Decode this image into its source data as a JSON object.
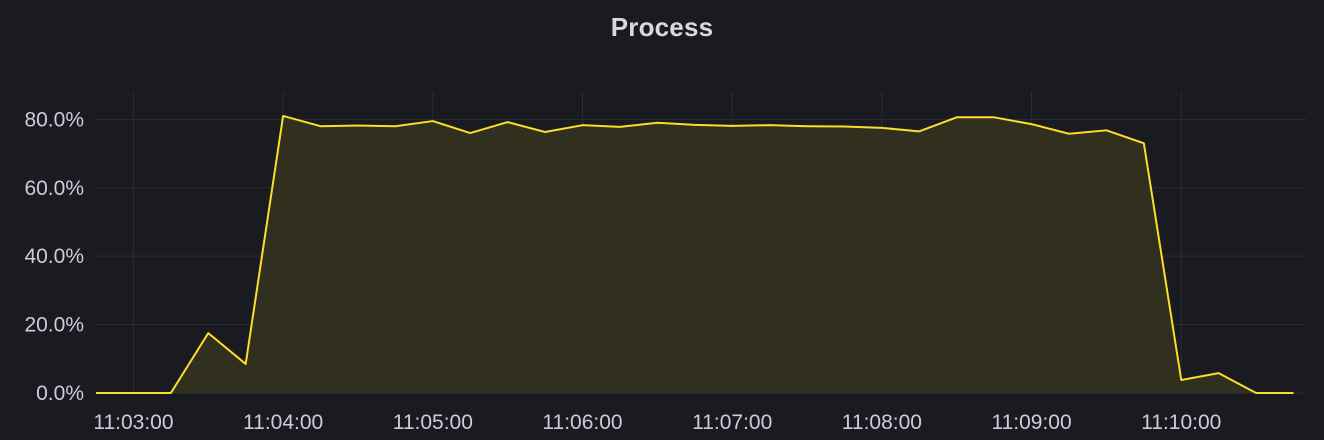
{
  "panel": {
    "title": "Process"
  },
  "chart_data": {
    "type": "area",
    "title": "Process",
    "xlabel": "",
    "ylabel": "",
    "x_ticks": [
      "11:03:00",
      "11:04:00",
      "11:05:00",
      "11:06:00",
      "11:07:00",
      "11:08:00",
      "11:09:00",
      "11:10:00"
    ],
    "y_ticks": [
      "0.0%",
      "20.0%",
      "40.0%",
      "60.0%",
      "80.0%"
    ],
    "y_tick_values": [
      0,
      20,
      40,
      60,
      80
    ],
    "ylim": [
      0,
      88
    ],
    "xlim": [
      "11:02:45",
      "11:10:50"
    ],
    "grid": true,
    "legend": "none",
    "line_color": "#fade2a",
    "fill_color": "#36331f",
    "series": [
      {
        "x": [
          "11:02:45",
          "11:03:00",
          "11:03:15",
          "11:03:30",
          "11:03:45",
          "11:04:00",
          "11:04:15",
          "11:04:30",
          "11:04:45",
          "11:05:00",
          "11:05:15",
          "11:05:30",
          "11:05:45",
          "11:06:00",
          "11:06:15",
          "11:06:30",
          "11:06:45",
          "11:07:00",
          "11:07:15",
          "11:07:30",
          "11:07:45",
          "11:08:00",
          "11:08:15",
          "11:08:30",
          "11:08:45",
          "11:09:00",
          "11:09:15",
          "11:09:30",
          "11:09:45",
          "11:10:00",
          "11:10:15",
          "11:10:30",
          "11:10:45"
        ],
        "values": [
          0,
          0,
          0,
          17.5,
          8.5,
          81,
          78,
          78.2,
          78,
          79.5,
          76,
          79.2,
          76.3,
          78.3,
          77.8,
          79,
          78.4,
          78.1,
          78.3,
          78,
          77.9,
          77.5,
          76.5,
          80.6,
          80.6,
          78.6,
          75.8,
          76.8,
          73,
          3.8,
          5.8,
          0,
          0
        ]
      }
    ]
  }
}
